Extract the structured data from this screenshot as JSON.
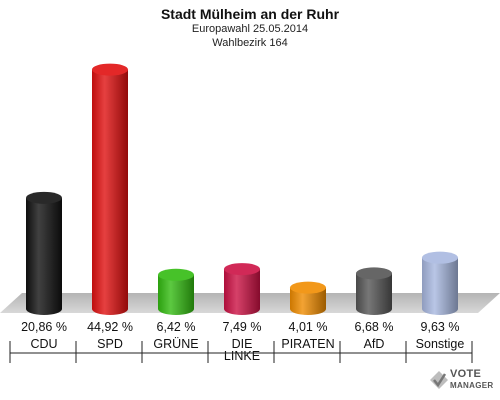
{
  "header": {
    "title": "Stadt Mülheim an der Ruhr",
    "subtitle": "Europawahl 25.05.2014",
    "district": "Wahlbezirk 164"
  },
  "logo": {
    "line1": "VOTE",
    "line2": "MANAGER"
  },
  "chart_data": {
    "type": "bar",
    "title": "Stadt Mülheim an der Ruhr",
    "categories": [
      "CDU",
      "SPD",
      "GRÜNE",
      "DIE LINKE",
      "PIRATEN",
      "AfD",
      "Sonstige"
    ],
    "labels": [
      [
        "CDU"
      ],
      [
        "SPD"
      ],
      [
        "GRÜNE"
      ],
      [
        "DIE",
        "LINKE"
      ],
      [
        "PIRATEN"
      ],
      [
        "AfD"
      ],
      [
        "Sonstige"
      ]
    ],
    "values": [
      20.86,
      44.92,
      6.42,
      7.49,
      4.01,
      6.68,
      9.63
    ],
    "value_labels": [
      "20,86 %",
      "44,92 %",
      "6,42 %",
      "7,49 %",
      "4,01 %",
      "6,68 %",
      "9,63 %"
    ],
    "colors": [
      "#111111",
      "#e01010",
      "#33bb11",
      "#cc1144",
      "#f08c00",
      "#555555",
      "#a8b8e0"
    ],
    "ylim": [
      0,
      50
    ]
  }
}
